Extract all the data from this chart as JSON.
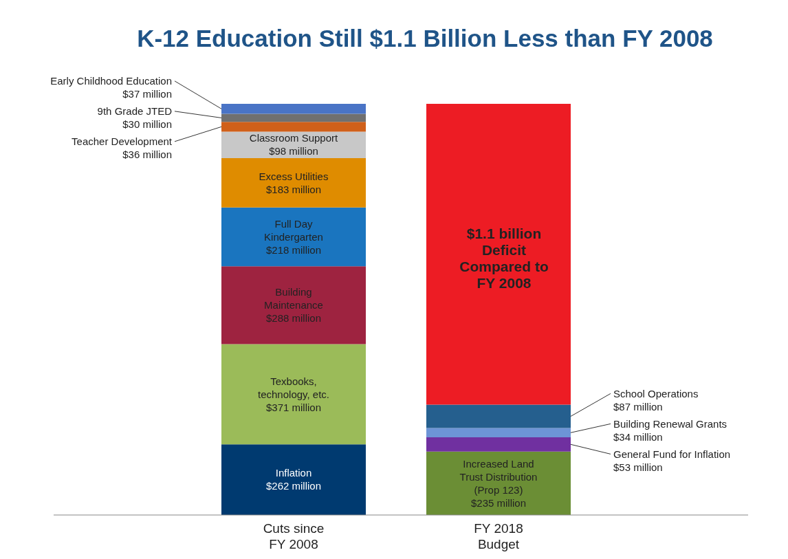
{
  "chart_data": {
    "type": "bar",
    "title": "K-12 Education Still $1.1 Billion Less than FY 2008",
    "categories": [
      "Cuts since FY 2008",
      "FY 2018 Budget"
    ],
    "stacked": true,
    "series": [
      {
        "name": "Inflation",
        "color": "#003a70",
        "values": [
          262,
          null
        ],
        "value_labels": [
          "$262 million",
          null
        ]
      },
      {
        "name": "Texbooks, technology, etc.",
        "color": "#9bbb59",
        "values": [
          371,
          null
        ],
        "value_labels": [
          "$371 million",
          null
        ]
      },
      {
        "name": "Building Maintenance",
        "color": "#9e2340",
        "values": [
          288,
          null
        ],
        "value_labels": [
          "$288 million",
          null
        ]
      },
      {
        "name": "Full Day Kindergarten",
        "color": "#1a75bf",
        "values": [
          218,
          null
        ],
        "value_labels": [
          "$218 million",
          null
        ]
      },
      {
        "name": "Excess Utilities",
        "color": "#df8c00",
        "values": [
          183,
          null
        ],
        "value_labels": [
          "$183 million",
          null
        ]
      },
      {
        "name": "Classroom Support",
        "color": "#c8c8c8",
        "values": [
          98,
          null
        ],
        "value_labels": [
          "$98 million",
          null
        ]
      },
      {
        "name": "Teacher Development",
        "color": "#d0601a",
        "values": [
          36,
          null
        ],
        "value_labels": [
          "$36 million",
          null
        ]
      },
      {
        "name": "9th Grade JTED",
        "color": "#707070",
        "values": [
          30,
          null
        ],
        "value_labels": [
          "$30 million",
          null
        ]
      },
      {
        "name": "Early Childhood Education",
        "color": "#4a74c6",
        "values": [
          37,
          null
        ],
        "value_labels": [
          "$37 million",
          null
        ]
      },
      {
        "name": "Increased Land Trust Distribution (Prop 123)",
        "color": "#6b8e35",
        "values": [
          null,
          235
        ],
        "value_labels": [
          null,
          "$235 million"
        ]
      },
      {
        "name": "General Fund for Inflation",
        "color": "#7030a0",
        "values": [
          null,
          53
        ],
        "value_labels": [
          null,
          "$53 million"
        ]
      },
      {
        "name": "Building Renewal Grants",
        "color": "#6d94d6",
        "values": [
          null,
          34
        ],
        "value_labels": [
          null,
          "$34 million"
        ]
      },
      {
        "name": "School Operations",
        "color": "#255f8e",
        "values": [
          null,
          87
        ],
        "value_labels": [
          null,
          "$87 million"
        ]
      },
      {
        "color": "#ed1c24",
        "values": [
          null,
          1114
        ]
      }
    ],
    "annotations": [
      "$1.1 billion Deficit Compared to FY 2008"
    ]
  }
}
